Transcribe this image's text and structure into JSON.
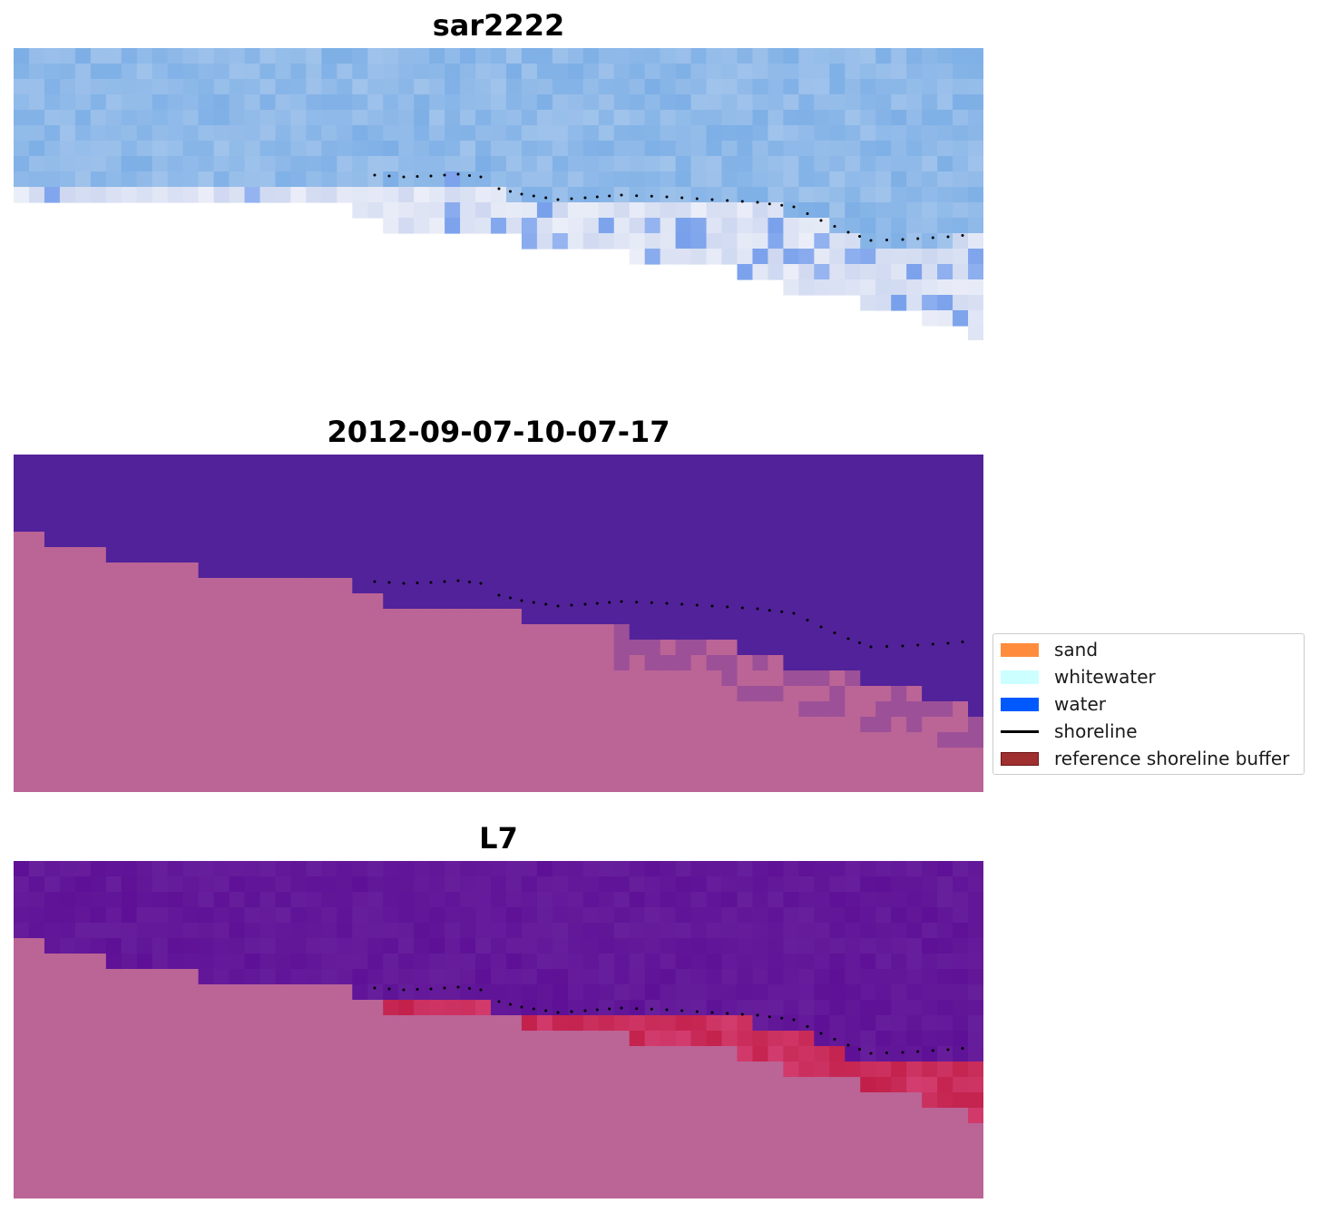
{
  "panels": [
    {
      "title": "sar2222"
    },
    {
      "title": "2012-09-07-10-07-17"
    },
    {
      "title": "L7"
    }
  ],
  "legend": {
    "items": [
      {
        "label": "sand",
        "color": "#ff8c3c"
      },
      {
        "label": "whitewater",
        "color": "#ccffff"
      },
      {
        "label": "water",
        "color": "#0059ff"
      },
      {
        "label": "shoreline",
        "color": "#000000"
      },
      {
        "label": "reference shoreline buffer",
        "color": "#a03030"
      }
    ]
  },
  "colors": {
    "sar_water": "#7eb0e6",
    "classified_water": "#52229a",
    "land_overlay": "#bb6496",
    "l7_water": "#5e1196",
    "l7_sand": "#c2204a"
  }
}
